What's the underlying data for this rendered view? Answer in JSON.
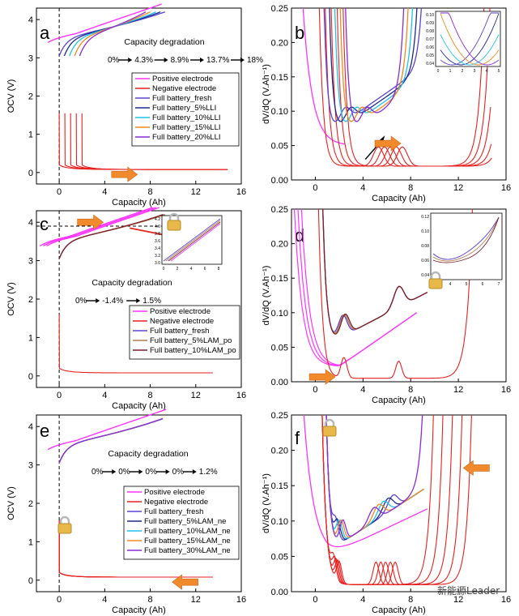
{
  "colors": {
    "positive": "#ff33ff",
    "negative": "#e8211f",
    "fresh": "#5a43d6",
    "deg1": "#1c2a8c",
    "deg2": "#1fc4e8",
    "deg3": "#f08a1e",
    "deg4": "#8a2bd8",
    "lam_po5": "#b07a4a",
    "lam_po10": "#7a1f2a",
    "arrow_orange": "#f08a2a"
  },
  "watermark": "新能源Leader",
  "chart_data": [
    {
      "id": "a",
      "type": "line",
      "panel_label": "a",
      "xlabel": "Capacity (Ah)",
      "ylabel": "OCV (V)",
      "xlim": [
        -2,
        16
      ],
      "ylim": [
        -0.3,
        4.3
      ],
      "xticks": [
        "0",
        "4",
        "8",
        "12",
        "16"
      ],
      "yticks": [
        "0",
        "1",
        "2",
        "3",
        "4"
      ],
      "degradation_title": "Capacity degradation",
      "degradation_steps": [
        "0%",
        "4.3%",
        "8.9%",
        "13.7%",
        "18%"
      ],
      "legend": [
        "Positive electrode",
        "Negative electrode",
        "Full battery_fresh",
        "Full battery_5%LLI",
        "Full battery_10%LLI",
        "Full battery_15%LLI",
        "Full battery_20%LLI"
      ],
      "series": [
        {
          "name": "Positive electrode",
          "shift": 0
        },
        {
          "name": "Negative electrode",
          "shifts": [
            0,
            0.5,
            1.0,
            1.5,
            2.0
          ]
        },
        {
          "name": "Full battery_fresh",
          "end_capacity": 9.3
        },
        {
          "name": "Full battery_5%LLI",
          "end_capacity": 8.9
        },
        {
          "name": "Full battery_10%LLI",
          "end_capacity": 8.5
        },
        {
          "name": "Full battery_15%LLI",
          "end_capacity": 8.0
        },
        {
          "name": "Full battery_20%LLI",
          "end_capacity": 7.6
        }
      ]
    },
    {
      "id": "b",
      "type": "line",
      "panel_label": "b",
      "xlabel": "Capacity (Ah)",
      "ylabel": "dV/dQ (V.Ah⁻¹)",
      "xlim": [
        -2,
        16
      ],
      "ylim": [
        0,
        0.25
      ],
      "xticks": [
        "0",
        "4",
        "8",
        "12",
        "16"
      ],
      "yticks": [
        "0.00",
        "0.05",
        "0.10",
        "0.15",
        "0.20",
        "0.25"
      ],
      "inset_yticks": [
        "0.10",
        "0.09",
        "0.08",
        "0.07",
        "0.06",
        "0.05",
        "0.04"
      ],
      "inset_xticks": [
        "0",
        "1",
        "2",
        "3",
        "4",
        "5"
      ]
    },
    {
      "id": "c",
      "type": "line",
      "panel_label": "c",
      "xlabel": "Capacity (Ah)",
      "ylabel": "OCV (V)",
      "xlim": [
        -2,
        16
      ],
      "ylim": [
        -0.3,
        4.3
      ],
      "xticks": [
        "0",
        "4",
        "8",
        "12",
        "16"
      ],
      "yticks": [
        "0",
        "1",
        "2",
        "3",
        "4"
      ],
      "degradation_title": "Capacity degradation",
      "degradation_steps": [
        "0%",
        "-1.4%",
        "1.5%"
      ],
      "legend": [
        "Positive electrode",
        "Negative electrode",
        "Full battery_fresh",
        "Full battery_5%LAM_po",
        "Full battery_10%LAM_po"
      ],
      "inset_yticks": [
        "4.2",
        "4.0",
        "3.8",
        "3.6",
        "3.4",
        "3.2",
        "3.0"
      ],
      "inset_xticks": [
        "0",
        "2",
        "4",
        "6",
        "8"
      ]
    },
    {
      "id": "d",
      "type": "line",
      "panel_label": "d",
      "xlabel": "Capacity (Ah)",
      "ylabel": "dV/dQ (V.Ah⁻¹)",
      "xlim": [
        -2,
        16
      ],
      "ylim": [
        0,
        0.25
      ],
      "xticks": [
        "0",
        "4",
        "8",
        "12",
        "16"
      ],
      "yticks": [
        "0.00",
        "0.05",
        "0.10",
        "0.15",
        "0.20",
        "0.25"
      ],
      "inset_yticks": [
        "0.12",
        "0.10",
        "0.08",
        "0.06",
        "0.04"
      ],
      "inset_xticks": [
        "3",
        "4",
        "5",
        "6",
        "7"
      ]
    },
    {
      "id": "e",
      "type": "line",
      "panel_label": "e",
      "xlabel": "Capacity (Ah)",
      "ylabel": "OCV (V)",
      "xlim": [
        -2,
        16
      ],
      "ylim": [
        -0.3,
        4.3
      ],
      "xticks": [
        "0",
        "4",
        "8",
        "12",
        "16"
      ],
      "yticks": [
        "0",
        "1",
        "2",
        "3",
        "4"
      ],
      "degradation_title": "Capacity degradation",
      "degradation_steps": [
        "0%",
        "0%",
        "0%",
        "0%",
        "1.2%"
      ],
      "legend": [
        "Positive electrode",
        "Negative electrode",
        "Full battery_fresh",
        "Full battery_5%LAM_ne",
        "Full battery_10%LAM_ne",
        "Full battery_15%LAM_ne",
        "Full battery_30%LAM_ne"
      ]
    },
    {
      "id": "f",
      "type": "line",
      "panel_label": "f",
      "xlabel": "Capacity (Ah)",
      "ylabel": "dV/dQ (V.Ah⁻¹)",
      "xlim": [
        -2,
        16
      ],
      "ylim": [
        0,
        0.25
      ],
      "xticks": [
        "0",
        "4",
        "8",
        "12",
        "16"
      ],
      "yticks": [
        "0.00",
        "0.05",
        "0.10",
        "0.15",
        "0.20",
        "0.25"
      ]
    }
  ]
}
